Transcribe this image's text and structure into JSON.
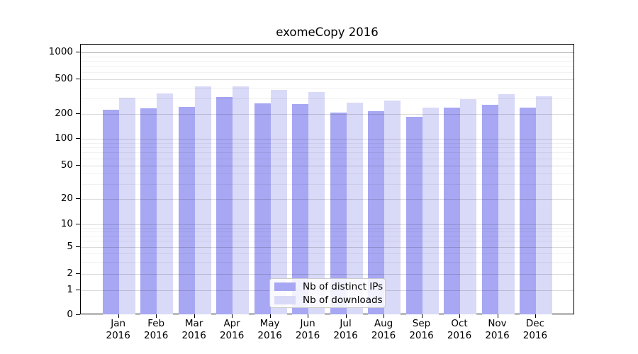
{
  "chart_data": {
    "type": "bar",
    "title": "exomeCopy 2016",
    "categories": [
      "Jan",
      "Feb",
      "Mar",
      "Apr",
      "May",
      "Jun",
      "Jul",
      "Aug",
      "Sep",
      "Oct",
      "Nov",
      "Dec"
    ],
    "category_year": "2016",
    "series": [
      {
        "name": "Nb of distinct IPs",
        "color": "#a7a7f3",
        "values": [
          225,
          232,
          243,
          312,
          267,
          258,
          207,
          214,
          185,
          238,
          254,
          235
        ]
      },
      {
        "name": "Nb of downloads",
        "color": "#d9d9f8",
        "values": [
          310,
          347,
          418,
          418,
          381,
          360,
          272,
          285,
          235,
          296,
          335,
          321
        ]
      }
    ],
    "yticks": [
      0,
      1,
      2,
      5,
      10,
      20,
      50,
      100,
      200,
      500,
      1000
    ],
    "yscale": "symlog",
    "ylim": [
      0,
      1000
    ],
    "grid": "on",
    "legend_position": "lower center"
  },
  "legend": {
    "items": [
      {
        "label": "Nb of distinct IPs"
      },
      {
        "label": "Nb of downloads"
      }
    ]
  }
}
